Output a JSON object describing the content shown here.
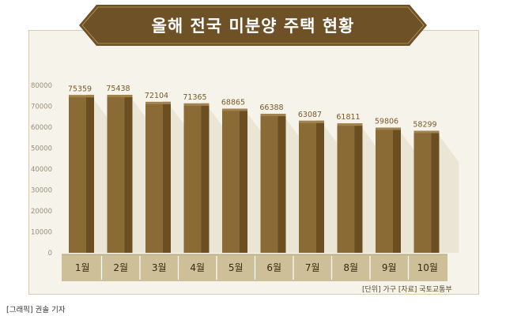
{
  "title": "올해 전국 미분양 주택 현황",
  "unit_note": "[단위] 가구   [자료] 국토교통부",
  "credit": "[그래픽] 권솔 기자",
  "colors": {
    "bar_front": "#8a6a35",
    "bar_side": "#6b4f22",
    "bar_top": "#a2834e",
    "banner": "#6e5126",
    "axis_band": "#cdbf98"
  },
  "chart_data": {
    "type": "bar",
    "categories": [
      "1월",
      "2월",
      "3월",
      "4월",
      "5월",
      "6월",
      "7월",
      "8월",
      "9월",
      "10월"
    ],
    "values": [
      75359,
      75438,
      72104,
      71365,
      68865,
      66388,
      63087,
      61811,
      59806,
      58299
    ],
    "yticks": [
      0,
      10000,
      20000,
      30000,
      40000,
      50000,
      60000,
      70000,
      80000
    ],
    "ylim": [
      0,
      80000
    ],
    "title": "올해 전국 미분양 주택 현황",
    "xlabel": "",
    "ylabel": "",
    "grid": false
  }
}
